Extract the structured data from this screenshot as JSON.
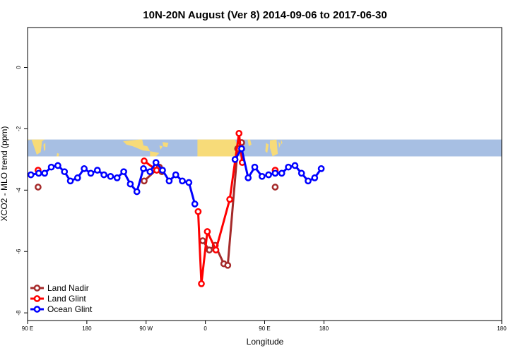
{
  "chart_data": {
    "type": "line",
    "title": "10N-20N August (Ver 8)   2014-09-06 to 2017-06-30",
    "xlabel": "Longitude",
    "ylabel": "XCO2 - MLO trend (ppm)",
    "xlim": [
      0,
      720
    ],
    "ylim": [
      -8.25,
      1.3
    ],
    "x_ticks": [
      {
        "value": 0,
        "label": "90 E"
      },
      {
        "value": 90,
        "label": "180"
      },
      {
        "value": 180,
        "label": "90 W"
      },
      {
        "value": 270,
        "label": "0"
      },
      {
        "value": 360,
        "label": "90 E"
      },
      {
        "value": 450,
        "label": "180"
      }
    ],
    "y_ticks": [
      {
        "value": 0,
        "label": "0"
      },
      {
        "value": -2,
        "label": "-2"
      },
      {
        "value": -4,
        "label": "-4"
      },
      {
        "value": -6,
        "label": "-6"
      },
      {
        "value": -8,
        "label": "-8"
      }
    ],
    "map_band": {
      "ylim": [
        -2.35,
        -2.9
      ],
      "ocean_color": "#a7bfe3",
      "land_color": "#f7db79"
    },
    "legend_position": "bottom-left",
    "series": [
      {
        "name": "Land Nadir",
        "color": "#a52a2a",
        "points": [
          [
            16,
            -3.9
          ],
          [
            177,
            -3.7
          ],
          [
            200,
            -3.25
          ],
          [
            204,
            -3.4
          ],
          [
            266,
            -5.65
          ],
          [
            276,
            -5.95
          ],
          [
            285,
            -5.8
          ],
          [
            298,
            -6.4
          ],
          [
            304,
            -6.45
          ],
          [
            319,
            -2.65
          ],
          [
            325,
            -2.45
          ],
          [
            376,
            -3.9
          ]
        ]
      },
      {
        "name": "Land Glint",
        "color": "#ff0000",
        "points": [
          [
            16,
            -3.35
          ],
          [
            177,
            -3.05
          ],
          [
            196,
            -3.35
          ],
          [
            259,
            -4.7
          ],
          [
            264,
            -7.05
          ],
          [
            273,
            -5.35
          ],
          [
            286,
            -5.95
          ],
          [
            307,
            -4.3
          ],
          [
            321,
            -2.15
          ],
          [
            326,
            -3.1
          ],
          [
            376,
            -3.35
          ]
        ]
      },
      {
        "name": "Ocean Glint",
        "color": "#0000ff",
        "points": [
          [
            5,
            -3.5
          ],
          [
            17,
            -3.45
          ],
          [
            26,
            -3.45
          ],
          [
            36,
            -3.25
          ],
          [
            46,
            -3.2
          ],
          [
            56,
            -3.4
          ],
          [
            65,
            -3.7
          ],
          [
            76,
            -3.6
          ],
          [
            86,
            -3.3
          ],
          [
            96,
            -3.45
          ],
          [
            106,
            -3.35
          ],
          [
            116,
            -3.5
          ],
          [
            126,
            -3.55
          ],
          [
            136,
            -3.6
          ],
          [
            146,
            -3.4
          ],
          [
            156,
            -3.8
          ],
          [
            166,
            -4.05
          ],
          [
            176,
            -3.3
          ],
          [
            186,
            -3.4
          ],
          [
            195,
            -3.1
          ],
          [
            205,
            -3.35
          ],
          [
            215,
            -3.7
          ],
          [
            225,
            -3.5
          ],
          [
            235,
            -3.7
          ],
          [
            245,
            -3.75
          ],
          [
            254,
            -4.45
          ],
          [
            315,
            -3.0
          ],
          [
            325,
            -2.65
          ],
          [
            335,
            -3.6
          ],
          [
            345,
            -3.25
          ],
          [
            356,
            -3.55
          ],
          [
            366,
            -3.5
          ],
          [
            376,
            -3.45
          ],
          [
            386,
            -3.45
          ],
          [
            396,
            -3.25
          ],
          [
            406,
            -3.2
          ],
          [
            416,
            -3.45
          ],
          [
            426,
            -3.7
          ],
          [
            436,
            -3.6
          ],
          [
            446,
            -3.3
          ]
        ]
      }
    ]
  }
}
